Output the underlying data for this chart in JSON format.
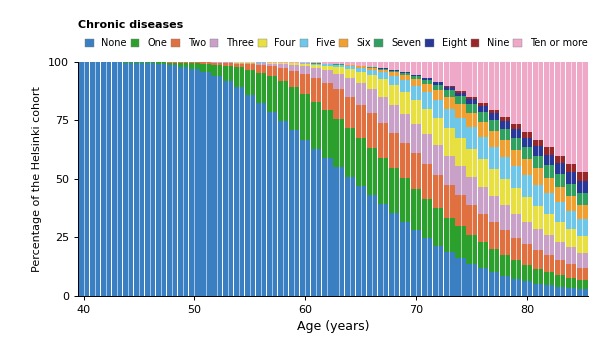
{
  "title": "Chronic diseases",
  "xlabel": "Age (years)",
  "ylabel": "Percentage of the Helsinki cohort",
  "age_start": 40,
  "age_end": 85,
  "colors": {
    "None": "#3a7fc1",
    "One": "#2ca02c",
    "Two": "#e07040",
    "Three": "#c9a0c8",
    "Four": "#e8e040",
    "Five": "#6ec6e8",
    "Six": "#f0a030",
    "Seven": "#30a060",
    "Eight": "#283898",
    "Nine": "#982828",
    "Ten or more": "#f0a8c8"
  },
  "legend_order": [
    "None",
    "One",
    "Two",
    "Three",
    "Four",
    "Five",
    "Six",
    "Seven",
    "Eight",
    "Nine",
    "Ten or more"
  ]
}
